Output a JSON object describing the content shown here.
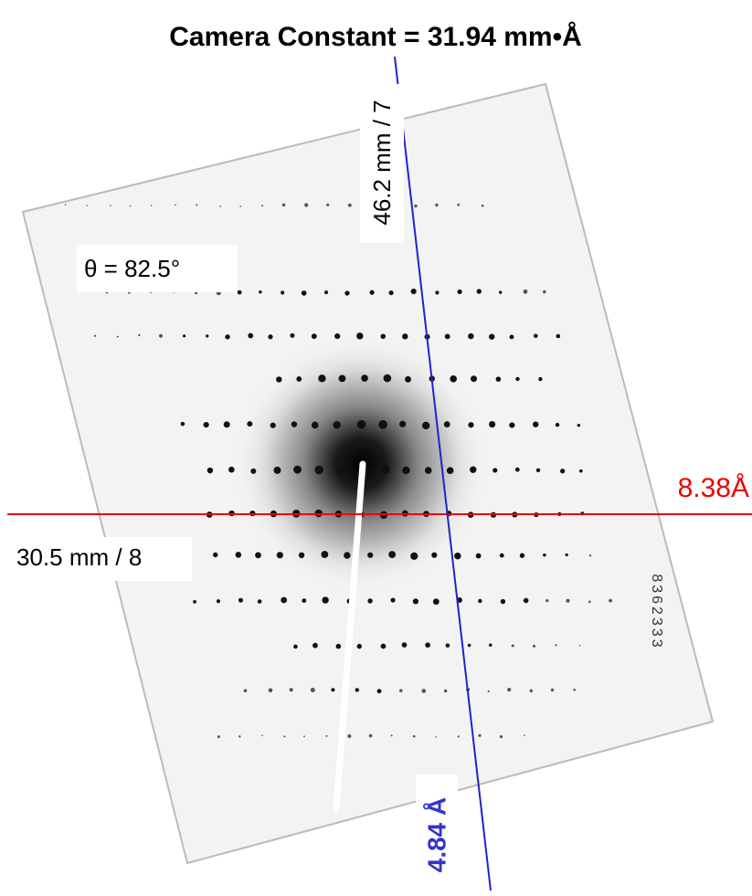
{
  "title": "Camera Constant = 31.94 mm•Å",
  "annotations": {
    "angle": "θ = 82.5°",
    "vertical_measure": "46.2 mm / 7",
    "vertical_spacing": "4.84 Å",
    "horizontal_measure": "30.5 mm / 8",
    "horizontal_spacing": "8.38Å"
  },
  "film_label": "8362333"
}
